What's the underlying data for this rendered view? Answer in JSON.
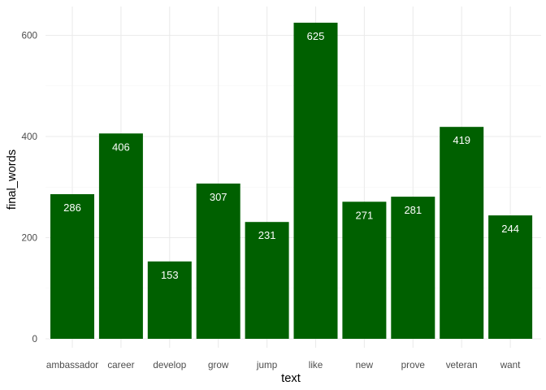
{
  "chart_data": {
    "type": "bar",
    "title": "",
    "xlabel": "text",
    "ylabel": "final_words",
    "categories": [
      "ambassador",
      "career",
      "develop",
      "grow",
      "jump",
      "like",
      "new",
      "prove",
      "veteran",
      "want"
    ],
    "values": [
      286,
      406,
      153,
      307,
      231,
      625,
      271,
      281,
      419,
      244
    ],
    "ylim": [
      0,
      660
    ],
    "yticks": [
      0,
      200,
      400,
      600
    ],
    "ytick_labels": [
      "0",
      "200",
      "400",
      "600"
    ],
    "grid": true,
    "legend": "none",
    "bar_color": "#006000",
    "data_label_color": "#ffffff"
  }
}
